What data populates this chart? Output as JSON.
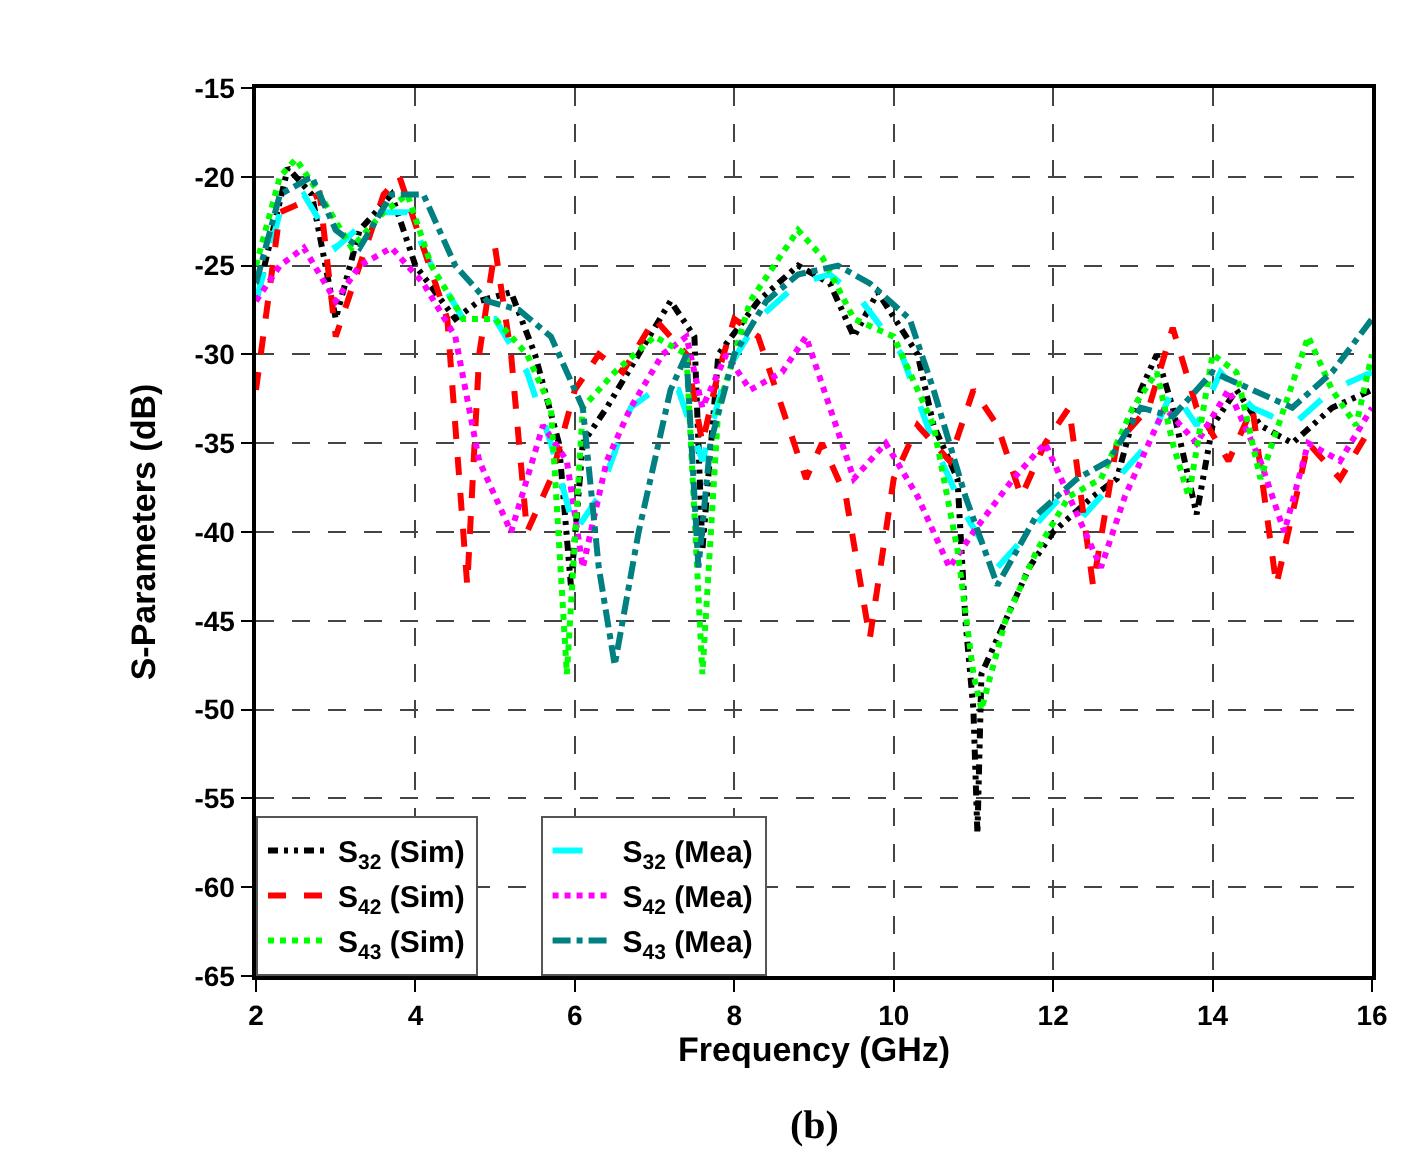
{
  "chart_data": {
    "type": "line",
    "xlabel": "Frequency (GHz)",
    "ylabel": "S-Parameters (dB)",
    "annotations": [
      "(b)"
    ],
    "xlim": [
      2,
      16
    ],
    "xticks": [
      2,
      4,
      6,
      8,
      10,
      12,
      14,
      16
    ],
    "ylim": [
      -65,
      -15
    ],
    "yticks": [
      -65,
      -60,
      -55,
      -50,
      -45,
      -40,
      -35,
      -30,
      -25,
      -20,
      -15
    ],
    "grid": true,
    "legend": "bottom left",
    "series": [
      {
        "name": "S$_{32}$ (Sim)",
        "color": "#000000",
        "line_style": "dashdotdot",
        "x": [
          2,
          2.4,
          2.7,
          3.0,
          3.3,
          3.7,
          4.0,
          4.5,
          4.8,
          5.2,
          5.5,
          5.8,
          5.95,
          6.1,
          6.4,
          6.8,
          7.2,
          7.5,
          7.6,
          7.8,
          8.3,
          8.8,
          9.2,
          9.5,
          9.8,
          10.3,
          10.5,
          10.8,
          10.9,
          11.0,
          11.05,
          11.1,
          11.5,
          11.7,
          12,
          12.5,
          12.8,
          13.1,
          13.3,
          13.5,
          13.8,
          14.0,
          14.3,
          14.6,
          15,
          15.5,
          16
        ],
        "values": [
          -27,
          -19.5,
          -21,
          -28,
          -23,
          -21,
          -25,
          -28,
          -27,
          -26.5,
          -30,
          -35,
          -43,
          -35,
          -33,
          -30,
          -27,
          -29,
          -41,
          -30,
          -27,
          -25,
          -26,
          -29,
          -26.5,
          -30,
          -34,
          -37,
          -45,
          -50,
          -57,
          -48,
          -44,
          -42,
          -40,
          -38,
          -37,
          -32,
          -30,
          -33,
          -39,
          -34,
          -32,
          -34,
          -35,
          -33,
          -32
        ]
      },
      {
        "name": "S$_{32}$ (Mea)",
        "color": "#00ffff",
        "line_style": "longdash",
        "x": [
          2,
          2.3,
          2.6,
          3.0,
          3.5,
          3.9,
          4.2,
          4.6,
          5.0,
          5.4,
          5.7,
          6.0,
          6.3,
          6.7,
          7.0,
          7.3,
          7.6,
          7.9,
          8.3,
          8.8,
          9.2,
          9.6,
          10.1,
          10.5,
          10.9,
          11.3,
          11.7,
          12.1,
          12.4,
          12.8,
          13.2,
          13.5,
          13.8,
          14.1,
          14.5,
          15.0,
          15.5,
          16
        ],
        "values": [
          -27,
          -22,
          -21,
          -24,
          -22,
          -22,
          -25,
          -28,
          -28,
          -31,
          -35,
          -40,
          -38,
          -33,
          -32,
          -32,
          -36,
          -31,
          -28,
          -26,
          -25.5,
          -27,
          -30,
          -35,
          -39,
          -42,
          -40,
          -38,
          -39,
          -37,
          -35,
          -32,
          -34,
          -31,
          -33,
          -34,
          -32,
          -31
        ]
      },
      {
        "name": "S$_{42}$ (Sim)",
        "color": "#ff0000",
        "line_style": "dashed",
        "x": [
          2,
          2.3,
          2.8,
          3.0,
          3.3,
          3.6,
          3.8,
          4.1,
          4.4,
          4.65,
          4.8,
          5.0,
          5.2,
          5.4,
          5.7,
          6.0,
          6.3,
          6.6,
          7.0,
          7.4,
          7.6,
          7.8,
          8.0,
          8.3,
          8.6,
          8.9,
          9.1,
          9.4,
          9.7,
          10.0,
          10.3,
          10.7,
          11.0,
          11.3,
          11.6,
          11.9,
          12.2,
          12.5,
          12.8,
          13.2,
          13.5,
          13.8,
          14.2,
          14.5,
          14.8,
          15.2,
          15.6,
          16
        ],
        "values": [
          -32,
          -22,
          -21,
          -29,
          -25,
          -21,
          -20,
          -24,
          -28,
          -43,
          -30,
          -24,
          -30,
          -40,
          -37,
          -32,
          -30,
          -31,
          -28,
          -30,
          -35,
          -31,
          -28,
          -29,
          -33,
          -37,
          -35,
          -38,
          -46,
          -37,
          -34,
          -36,
          -32,
          -34,
          -38,
          -35,
          -33,
          -43,
          -35,
          -33,
          -28.5,
          -33,
          -36,
          -33,
          -43,
          -35,
          -37,
          -34
        ]
      },
      {
        "name": "S$_{42}$ (Mea)",
        "color": "#ff00ff",
        "line_style": "dotted",
        "x": [
          2,
          2.3,
          2.6,
          3.0,
          3.3,
          3.7,
          4.1,
          4.5,
          4.8,
          5.2,
          5.6,
          5.9,
          6.1,
          6.4,
          6.7,
          7.1,
          7.4,
          7.6,
          7.9,
          8.2,
          8.6,
          8.9,
          9.2,
          9.5,
          9.9,
          10.3,
          10.7,
          11.0,
          11.5,
          11.9,
          12.3,
          12.6,
          12.9,
          13.4,
          13.8,
          14.2,
          14.6,
          14.9,
          15.2,
          15.6,
          16
        ],
        "values": [
          -27,
          -25,
          -24,
          -27,
          -25,
          -24,
          -26,
          -29,
          -36,
          -40,
          -34,
          -36,
          -42,
          -36,
          -33,
          -30,
          -29,
          -33,
          -30,
          -32,
          -31,
          -29,
          -33,
          -37,
          -35,
          -38,
          -42,
          -40,
          -37,
          -35,
          -39,
          -42,
          -38,
          -33,
          -35,
          -32,
          -36,
          -40,
          -35,
          -36,
          -33
        ]
      },
      {
        "name": "S$_{43}$ (Sim)",
        "color": "#00ff00",
        "line_style": "dotted",
        "x": [
          2,
          2.3,
          2.5,
          2.8,
          3.2,
          3.6,
          3.9,
          4.2,
          4.6,
          5.0,
          5.4,
          5.7,
          5.9,
          6.1,
          6.5,
          7.0,
          7.4,
          7.6,
          7.8,
          8.2,
          8.8,
          9.1,
          9.5,
          10.0,
          10.5,
          10.8,
          11.0,
          11.1,
          11.4,
          11.8,
          12.2,
          12.6,
          13.0,
          13.3,
          13.5,
          13.7,
          14.0,
          14.3,
          14.6,
          14.9,
          15.2,
          15.5,
          15.8,
          16
        ],
        "values": [
          -25,
          -20,
          -19,
          -21,
          -24,
          -22,
          -21,
          -25,
          -28,
          -28,
          -30,
          -33,
          -48,
          -33,
          -31,
          -29,
          -30,
          -48,
          -33,
          -27,
          -23,
          -24.5,
          -28,
          -29,
          -34,
          -41,
          -48,
          -50,
          -45,
          -41,
          -38,
          -37,
          -33,
          -31,
          -35,
          -38,
          -30,
          -31,
          -37,
          -33,
          -29,
          -32,
          -34,
          -30
        ]
      },
      {
        "name": "S$_{43}$ (Mea)",
        "color": "#008080",
        "line_style": "dashdot",
        "x": [
          2,
          2.3,
          2.7,
          3.0,
          3.3,
          3.7,
          4.1,
          4.5,
          4.9,
          5.3,
          5.7,
          6.1,
          6.3,
          6.5,
          6.8,
          7.2,
          7.4,
          7.55,
          7.7,
          8.0,
          8.4,
          8.8,
          9.3,
          9.7,
          10.2,
          10.5,
          10.9,
          11.3,
          11.8,
          12.3,
          12.7,
          13.1,
          13.5,
          14.0,
          14.5,
          15.0,
          15.5,
          16
        ],
        "values": [
          -26,
          -21,
          -20,
          -23,
          -24,
          -21,
          -21,
          -25,
          -27,
          -27.5,
          -29,
          -33,
          -42,
          -47.5,
          -40,
          -32,
          -30,
          -42,
          -35,
          -30,
          -27,
          -25.5,
          -25,
          -26,
          -28,
          -32,
          -38,
          -43,
          -39,
          -37,
          -36,
          -33,
          -33.5,
          -31,
          -32,
          -33,
          -31,
          -28
        ]
      }
    ]
  }
}
